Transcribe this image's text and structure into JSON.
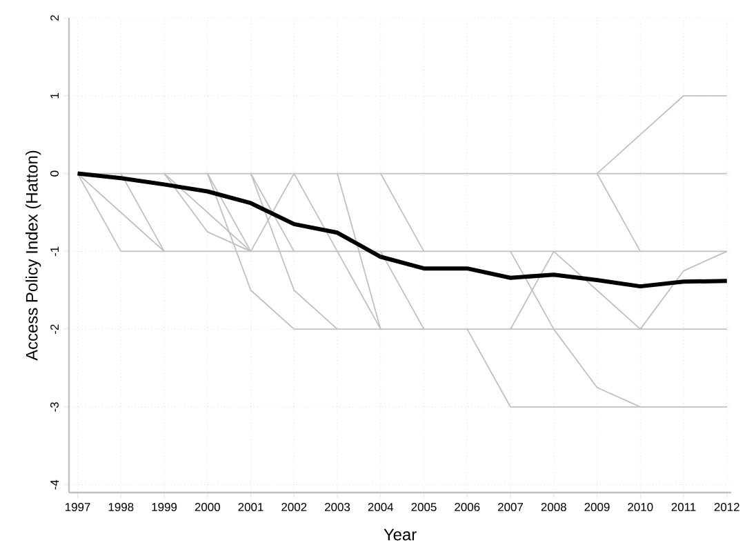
{
  "chart_data": {
    "type": "line",
    "xlabel": "Year",
    "ylabel": "Access Policy Index (Hatton)",
    "x": [
      1997,
      1998,
      1999,
      2000,
      2001,
      2002,
      2003,
      2004,
      2005,
      2006,
      2007,
      2008,
      2009,
      2010,
      2011,
      2012
    ],
    "xlim": [
      1996.8,
      2012.1
    ],
    "ylim": [
      -4.1,
      2
    ],
    "xticks": [
      1997,
      1998,
      1999,
      2000,
      2001,
      2002,
      2003,
      2004,
      2005,
      2006,
      2007,
      2008,
      2009,
      2010,
      2011,
      2012
    ],
    "yticks": [
      -4,
      -3,
      -2,
      -1,
      0,
      1,
      2
    ],
    "grid": true,
    "line_style": "solid",
    "marker": "none",
    "series": [
      {
        "color": "#c0c0c0",
        "values": [
          0,
          0,
          0,
          0,
          0,
          0,
          0,
          0,
          0,
          0,
          0,
          0,
          0,
          0,
          0,
          0
        ]
      },
      {
        "color": "#c0c0c0",
        "values": [
          null,
          -1,
          -1,
          -1,
          -1,
          -1,
          -1,
          -1,
          -1,
          -1,
          -1,
          -1,
          -1,
          -1,
          -1,
          -1
        ]
      },
      {
        "color": "#c0c0c0",
        "values": [
          null,
          null,
          null,
          null,
          null,
          -2,
          -2,
          -2,
          -2,
          -2,
          -2,
          -2,
          -2,
          -2,
          -2,
          -2
        ]
      },
      {
        "color": "#c0c0c0",
        "values": [
          null,
          null,
          null,
          null,
          null,
          null,
          null,
          null,
          null,
          null,
          -3,
          -3,
          -3,
          -3,
          -3,
          -3
        ]
      },
      {
        "color": "#c0c0c0",
        "values": [
          null,
          null,
          null,
          null,
          null,
          null,
          null,
          null,
          null,
          null,
          null,
          null,
          0,
          0.5,
          1,
          1
        ]
      },
      {
        "color": "#c0c0c0",
        "values": [
          0,
          -1,
          null,
          null,
          null,
          null,
          null,
          null,
          null,
          null,
          null,
          null,
          null,
          null,
          null,
          null
        ]
      },
      {
        "color": "#c0c0c0",
        "values": [
          0,
          -0.5,
          -1,
          null,
          null,
          null,
          null,
          null,
          null,
          null,
          null,
          null,
          null,
          null,
          null,
          null
        ]
      },
      {
        "color": "#c0c0c0",
        "values": [
          null,
          0,
          -1,
          null,
          null,
          null,
          null,
          null,
          null,
          null,
          null,
          null,
          null,
          null,
          null,
          null
        ]
      },
      {
        "color": "#c0c0c0",
        "values": [
          null,
          null,
          0,
          -0.5,
          -1,
          0,
          null,
          null,
          null,
          null,
          null,
          null,
          null,
          null,
          null,
          null
        ]
      },
      {
        "color": "#c0c0c0",
        "values": [
          null,
          null,
          0,
          -0.75,
          -1,
          null,
          null,
          null,
          null,
          null,
          null,
          null,
          null,
          null,
          null,
          null
        ]
      },
      {
        "color": "#c0c0c0",
        "values": [
          null,
          null,
          null,
          0,
          -1,
          null,
          null,
          null,
          null,
          null,
          null,
          null,
          null,
          null,
          null,
          null
        ]
      },
      {
        "color": "#c0c0c0",
        "values": [
          null,
          null,
          null,
          0,
          -1.5,
          -2,
          null,
          null,
          null,
          null,
          null,
          null,
          null,
          null,
          null,
          null
        ]
      },
      {
        "color": "#c0c0c0",
        "values": [
          null,
          null,
          null,
          null,
          0,
          -1.5,
          -2,
          null,
          null,
          null,
          null,
          null,
          null,
          null,
          null,
          null
        ]
      },
      {
        "color": "#c0c0c0",
        "values": [
          null,
          null,
          null,
          null,
          0,
          -1,
          null,
          null,
          null,
          null,
          null,
          null,
          null,
          null,
          null,
          null
        ]
      },
      {
        "color": "#c0c0c0",
        "values": [
          null,
          null,
          null,
          null,
          null,
          0,
          -1,
          -2,
          null,
          null,
          null,
          null,
          null,
          null,
          null,
          null
        ]
      },
      {
        "color": "#c0c0c0",
        "values": [
          null,
          null,
          null,
          null,
          null,
          null,
          0,
          -2,
          null,
          null,
          null,
          null,
          null,
          null,
          null,
          null
        ]
      },
      {
        "color": "#c0c0c0",
        "values": [
          null,
          null,
          null,
          null,
          null,
          null,
          null,
          0,
          -1,
          null,
          null,
          null,
          null,
          null,
          null,
          null
        ]
      },
      {
        "color": "#c0c0c0",
        "values": [
          null,
          null,
          null,
          null,
          null,
          null,
          null,
          -1,
          -2,
          null,
          null,
          null,
          null,
          null,
          null,
          null
        ]
      },
      {
        "color": "#c0c0c0",
        "values": [
          null,
          null,
          null,
          null,
          null,
          null,
          null,
          null,
          null,
          -2,
          -3,
          null,
          null,
          null,
          null,
          null
        ]
      },
      {
        "color": "#c0c0c0",
        "values": [
          null,
          null,
          null,
          null,
          null,
          null,
          null,
          null,
          null,
          null,
          -2,
          -1,
          -1.5,
          -2,
          -1.25,
          -1
        ]
      },
      {
        "color": "#c0c0c0",
        "values": [
          null,
          null,
          null,
          null,
          null,
          null,
          null,
          null,
          null,
          null,
          -1,
          -2,
          -2.75,
          -3,
          null,
          null
        ]
      },
      {
        "color": "#c0c0c0",
        "values": [
          null,
          null,
          null,
          null,
          null,
          null,
          null,
          null,
          null,
          null,
          null,
          null,
          0,
          -1,
          null,
          null
        ]
      },
      {
        "color": "#000000",
        "values": [
          0,
          -0.06,
          -0.14,
          -0.23,
          -0.38,
          -0.65,
          -0.76,
          -1.07,
          -1.22,
          -1.22,
          -1.34,
          -1.3,
          -1.37,
          -1.45,
          -1.39,
          -1.38
        ]
      }
    ]
  }
}
